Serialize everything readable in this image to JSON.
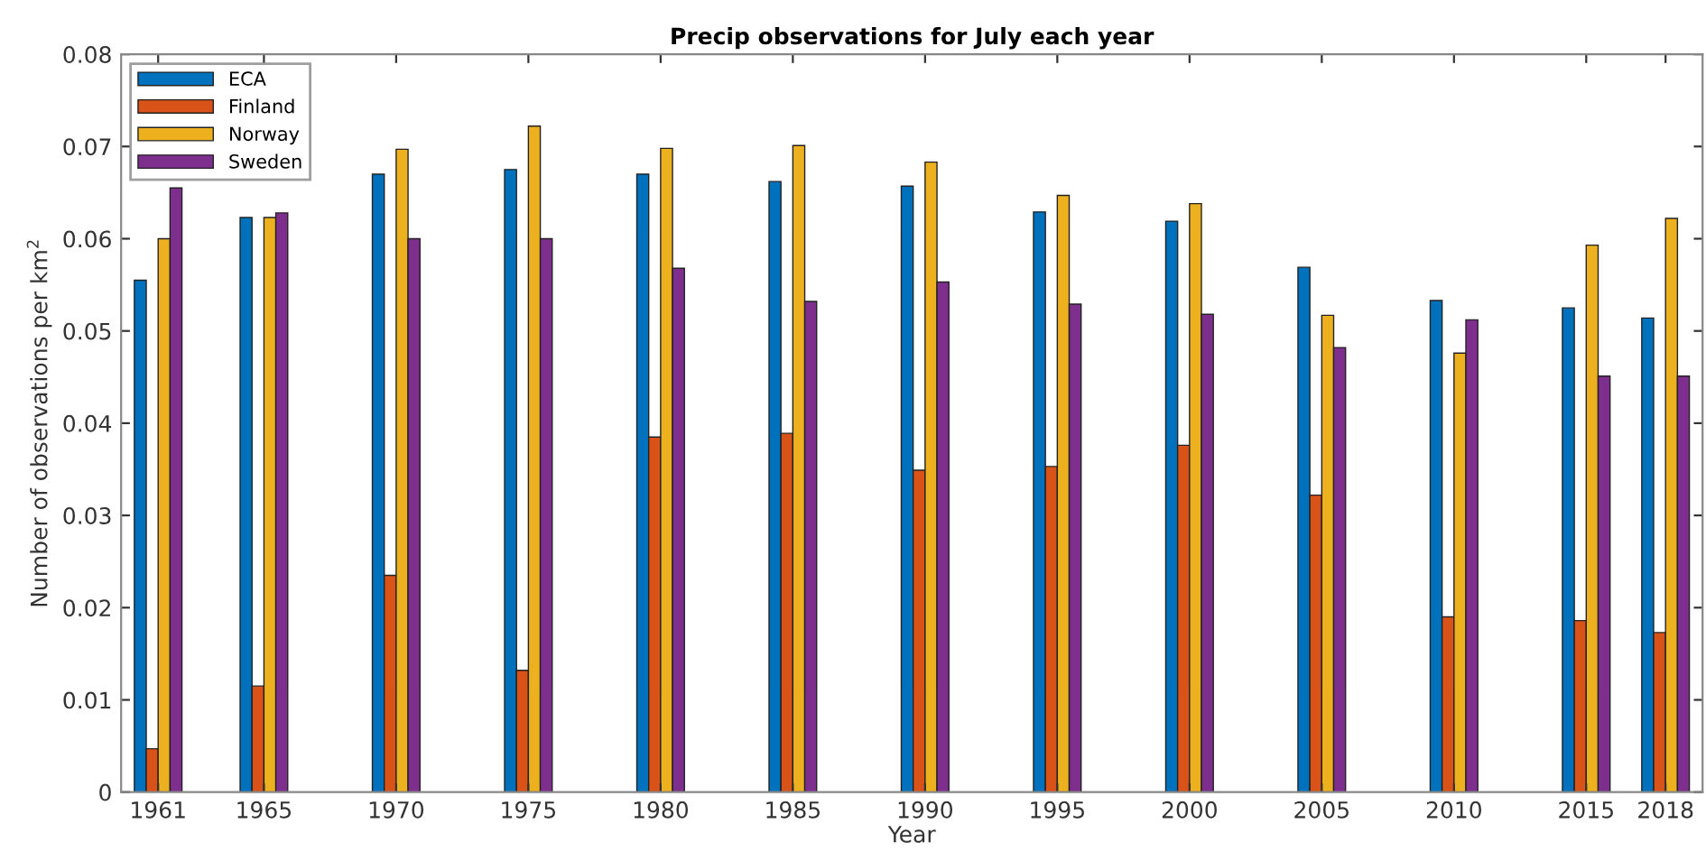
{
  "chart_data": {
    "type": "bar",
    "title": "Precip observations for July each year",
    "xlabel": "Year",
    "ylabel": "Number of observations per km$^{2}$",
    "x": [
      1961,
      1965,
      1970,
      1975,
      1980,
      1985,
      1990,
      1995,
      2000,
      2005,
      2010,
      2015,
      2018
    ],
    "series": [
      {
        "name": "ECA",
        "color": "#0072bd",
        "values": [
          0.0555,
          0.0623,
          0.067,
          0.0675,
          0.067,
          0.0662,
          0.0657,
          0.0629,
          0.0619,
          0.0569,
          0.0533,
          0.0525,
          0.0514
        ]
      },
      {
        "name": "Finland",
        "color": "#d95319",
        "values": [
          0.0047,
          0.0115,
          0.0235,
          0.0132,
          0.0385,
          0.0389,
          0.0349,
          0.0353,
          0.0376,
          0.0322,
          0.019,
          0.0186,
          0.0173
        ]
      },
      {
        "name": "Norway",
        "color": "#edb120",
        "values": [
          0.06,
          0.0623,
          0.0697,
          0.0722,
          0.0698,
          0.0701,
          0.0683,
          0.0647,
          0.0638,
          0.0517,
          0.0476,
          0.0593,
          0.0622
        ]
      },
      {
        "name": "Sweden",
        "color": "#7e2f8e",
        "values": [
          0.0655,
          0.0628,
          0.06,
          0.06,
          0.0568,
          0.0532,
          0.0553,
          0.0529,
          0.0518,
          0.0482,
          0.0512,
          0.0451,
          0.0451
        ]
      }
    ],
    "xlim": [
      1959.6,
      2019.4
    ],
    "xticks": [
      1961,
      1965,
      1970,
      1975,
      1980,
      1985,
      1990,
      1995,
      2000,
      2005,
      2010,
      2015,
      2018
    ],
    "ylim": [
      0,
      0.08
    ],
    "yticks": [
      {
        "value": 0,
        "label": "0"
      },
      0.01,
      0.02,
      0.03,
      0.04,
      0.05,
      0.06,
      0.07,
      0.08
    ],
    "grid": false,
    "legend": "top left"
  }
}
